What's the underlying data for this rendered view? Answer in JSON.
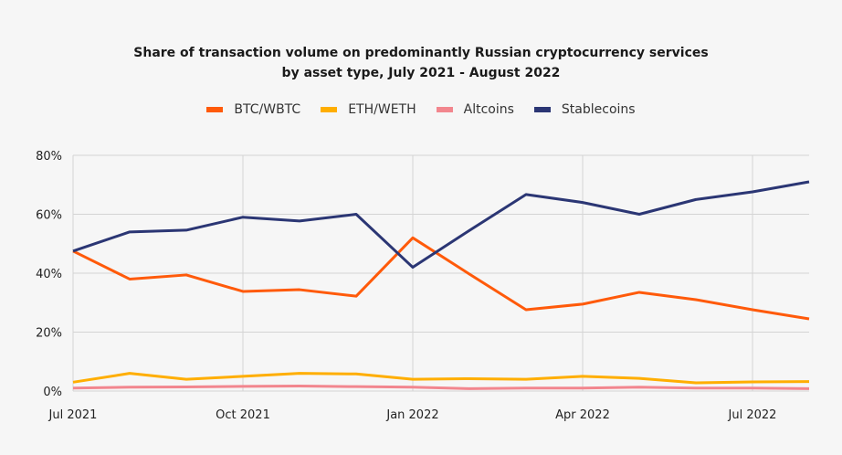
{
  "chart_data": {
    "type": "line",
    "title": "Share of transaction volume on predominantly Russian cryptocurrency services",
    "subtitle": "by  asset type, July 2021 - August 2022",
    "x": [
      "2021-07",
      "2021-08",
      "2021-09",
      "2021-10",
      "2021-11",
      "2021-12",
      "2022-01",
      "2022-02",
      "2022-03",
      "2022-04",
      "2022-05",
      "2022-06",
      "2022-07",
      "2022-08"
    ],
    "x_tick_labels": [
      {
        "index": 0,
        "label": "Jul 2021"
      },
      {
        "index": 3,
        "label": "Oct 2021"
      },
      {
        "index": 6,
        "label": "Jan 2022"
      },
      {
        "index": 9,
        "label": "Apr 2022"
      },
      {
        "index": 12,
        "label": "Jul 2022"
      }
    ],
    "y_tick_labels": [
      {
        "value": 0,
        "label": "0%"
      },
      {
        "value": 20,
        "label": "20%"
      },
      {
        "value": 40,
        "label": "40%"
      },
      {
        "value": 60,
        "label": "60%"
      },
      {
        "value": 80,
        "label": "80%"
      }
    ],
    "ylim": [
      0,
      80
    ],
    "xlabel": "",
    "ylabel": "",
    "grid": true,
    "legend_position": "top",
    "series": [
      {
        "name": "BTC/WBTC",
        "color": "#ff5a0a",
        "values": [
          47.5,
          38,
          39.4,
          33.8,
          34.4,
          32.2,
          52,
          39.7,
          27.6,
          29.5,
          33.5,
          31,
          27.6,
          24.5
        ]
      },
      {
        "name": "ETH/WETH",
        "color": "#ffae00",
        "values": [
          3,
          6,
          4,
          5,
          6,
          5.8,
          4,
          4.2,
          4,
          5,
          4.3,
          2.8,
          3.1,
          3.2
        ]
      },
      {
        "name": "Altcoins",
        "color": "#f2868e",
        "values": [
          1,
          1.3,
          1.4,
          1.6,
          1.7,
          1.5,
          1.3,
          0.8,
          1,
          1,
          1.3,
          1,
          1,
          0.8
        ]
      },
      {
        "name": "Stablecoins",
        "color": "#2b3674",
        "values": [
          47.5,
          54,
          54.6,
          59,
          57.7,
          60,
          42,
          54.5,
          66.7,
          64,
          60,
          65,
          67.6,
          71
        ]
      }
    ]
  }
}
